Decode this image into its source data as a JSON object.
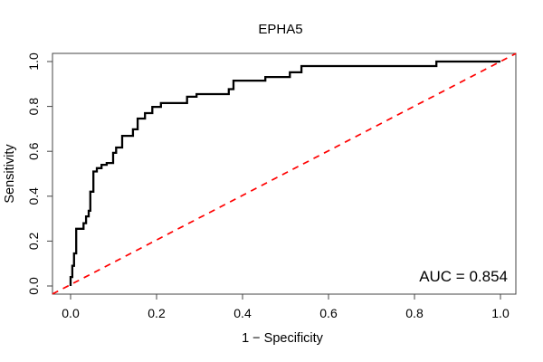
{
  "chart": {
    "accent_black": "#000000",
    "diagonal_red": "#ff0000",
    "frame_color": "#444444",
    "background": "#ffffff"
  },
  "chart_data": {
    "type": "line",
    "title": "EPHA5",
    "xlabel": "1 − Specificity",
    "ylabel": "Sensitivity",
    "xlim": [
      0,
      1
    ],
    "ylim": [
      0,
      1
    ],
    "grid": false,
    "xticks": {
      "values": [
        0.0,
        0.2,
        0.4,
        0.6,
        0.8,
        1.0
      ],
      "labels": [
        "0.0",
        "0.2",
        "0.4",
        "0.6",
        "0.8",
        "1.0"
      ]
    },
    "yticks": {
      "values": [
        0.0,
        0.2,
        0.4,
        0.6,
        0.8,
        1.0
      ],
      "labels": [
        "0.0",
        "0.2",
        "0.4",
        "0.6",
        "0.8",
        "1.0"
      ]
    },
    "annotation": {
      "text": "AUC = 0.854",
      "auc_value": 0.854
    },
    "series": [
      {
        "name": "ROC curve",
        "line": "solid",
        "color": "#000000",
        "points": [
          [
            0.0,
            0.0
          ],
          [
            0.0,
            0.04
          ],
          [
            0.004,
            0.04
          ],
          [
            0.004,
            0.09
          ],
          [
            0.008,
            0.09
          ],
          [
            0.008,
            0.145
          ],
          [
            0.013,
            0.145
          ],
          [
            0.013,
            0.255
          ],
          [
            0.03,
            0.255
          ],
          [
            0.03,
            0.28
          ],
          [
            0.036,
            0.28
          ],
          [
            0.036,
            0.31
          ],
          [
            0.042,
            0.31
          ],
          [
            0.042,
            0.335
          ],
          [
            0.046,
            0.335
          ],
          [
            0.046,
            0.42
          ],
          [
            0.053,
            0.42
          ],
          [
            0.053,
            0.51
          ],
          [
            0.061,
            0.51
          ],
          [
            0.061,
            0.525
          ],
          [
            0.072,
            0.525
          ],
          [
            0.072,
            0.54
          ],
          [
            0.084,
            0.54
          ],
          [
            0.084,
            0.548
          ],
          [
            0.099,
            0.548
          ],
          [
            0.099,
            0.593
          ],
          [
            0.106,
            0.593
          ],
          [
            0.106,
            0.617
          ],
          [
            0.12,
            0.617
          ],
          [
            0.12,
            0.669
          ],
          [
            0.145,
            0.669
          ],
          [
            0.145,
            0.698
          ],
          [
            0.156,
            0.698
          ],
          [
            0.156,
            0.746
          ],
          [
            0.173,
            0.746
          ],
          [
            0.173,
            0.77
          ],
          [
            0.19,
            0.77
          ],
          [
            0.19,
            0.798
          ],
          [
            0.21,
            0.798
          ],
          [
            0.21,
            0.815
          ],
          [
            0.271,
            0.815
          ],
          [
            0.271,
            0.843
          ],
          [
            0.293,
            0.843
          ],
          [
            0.293,
            0.855
          ],
          [
            0.368,
            0.855
          ],
          [
            0.368,
            0.877
          ],
          [
            0.379,
            0.877
          ],
          [
            0.379,
            0.915
          ],
          [
            0.453,
            0.915
          ],
          [
            0.453,
            0.931
          ],
          [
            0.51,
            0.931
          ],
          [
            0.51,
            0.952
          ],
          [
            0.537,
            0.952
          ],
          [
            0.537,
            0.98
          ],
          [
            0.851,
            0.98
          ],
          [
            0.851,
            1.0
          ],
          [
            1.0,
            1.0
          ]
        ]
      },
      {
        "name": "chance diagonal",
        "line": "dashed",
        "color": "#ff0000",
        "points": [
          [
            -0.042,
            -0.036
          ],
          [
            1.036,
            1.036
          ]
        ]
      }
    ]
  }
}
